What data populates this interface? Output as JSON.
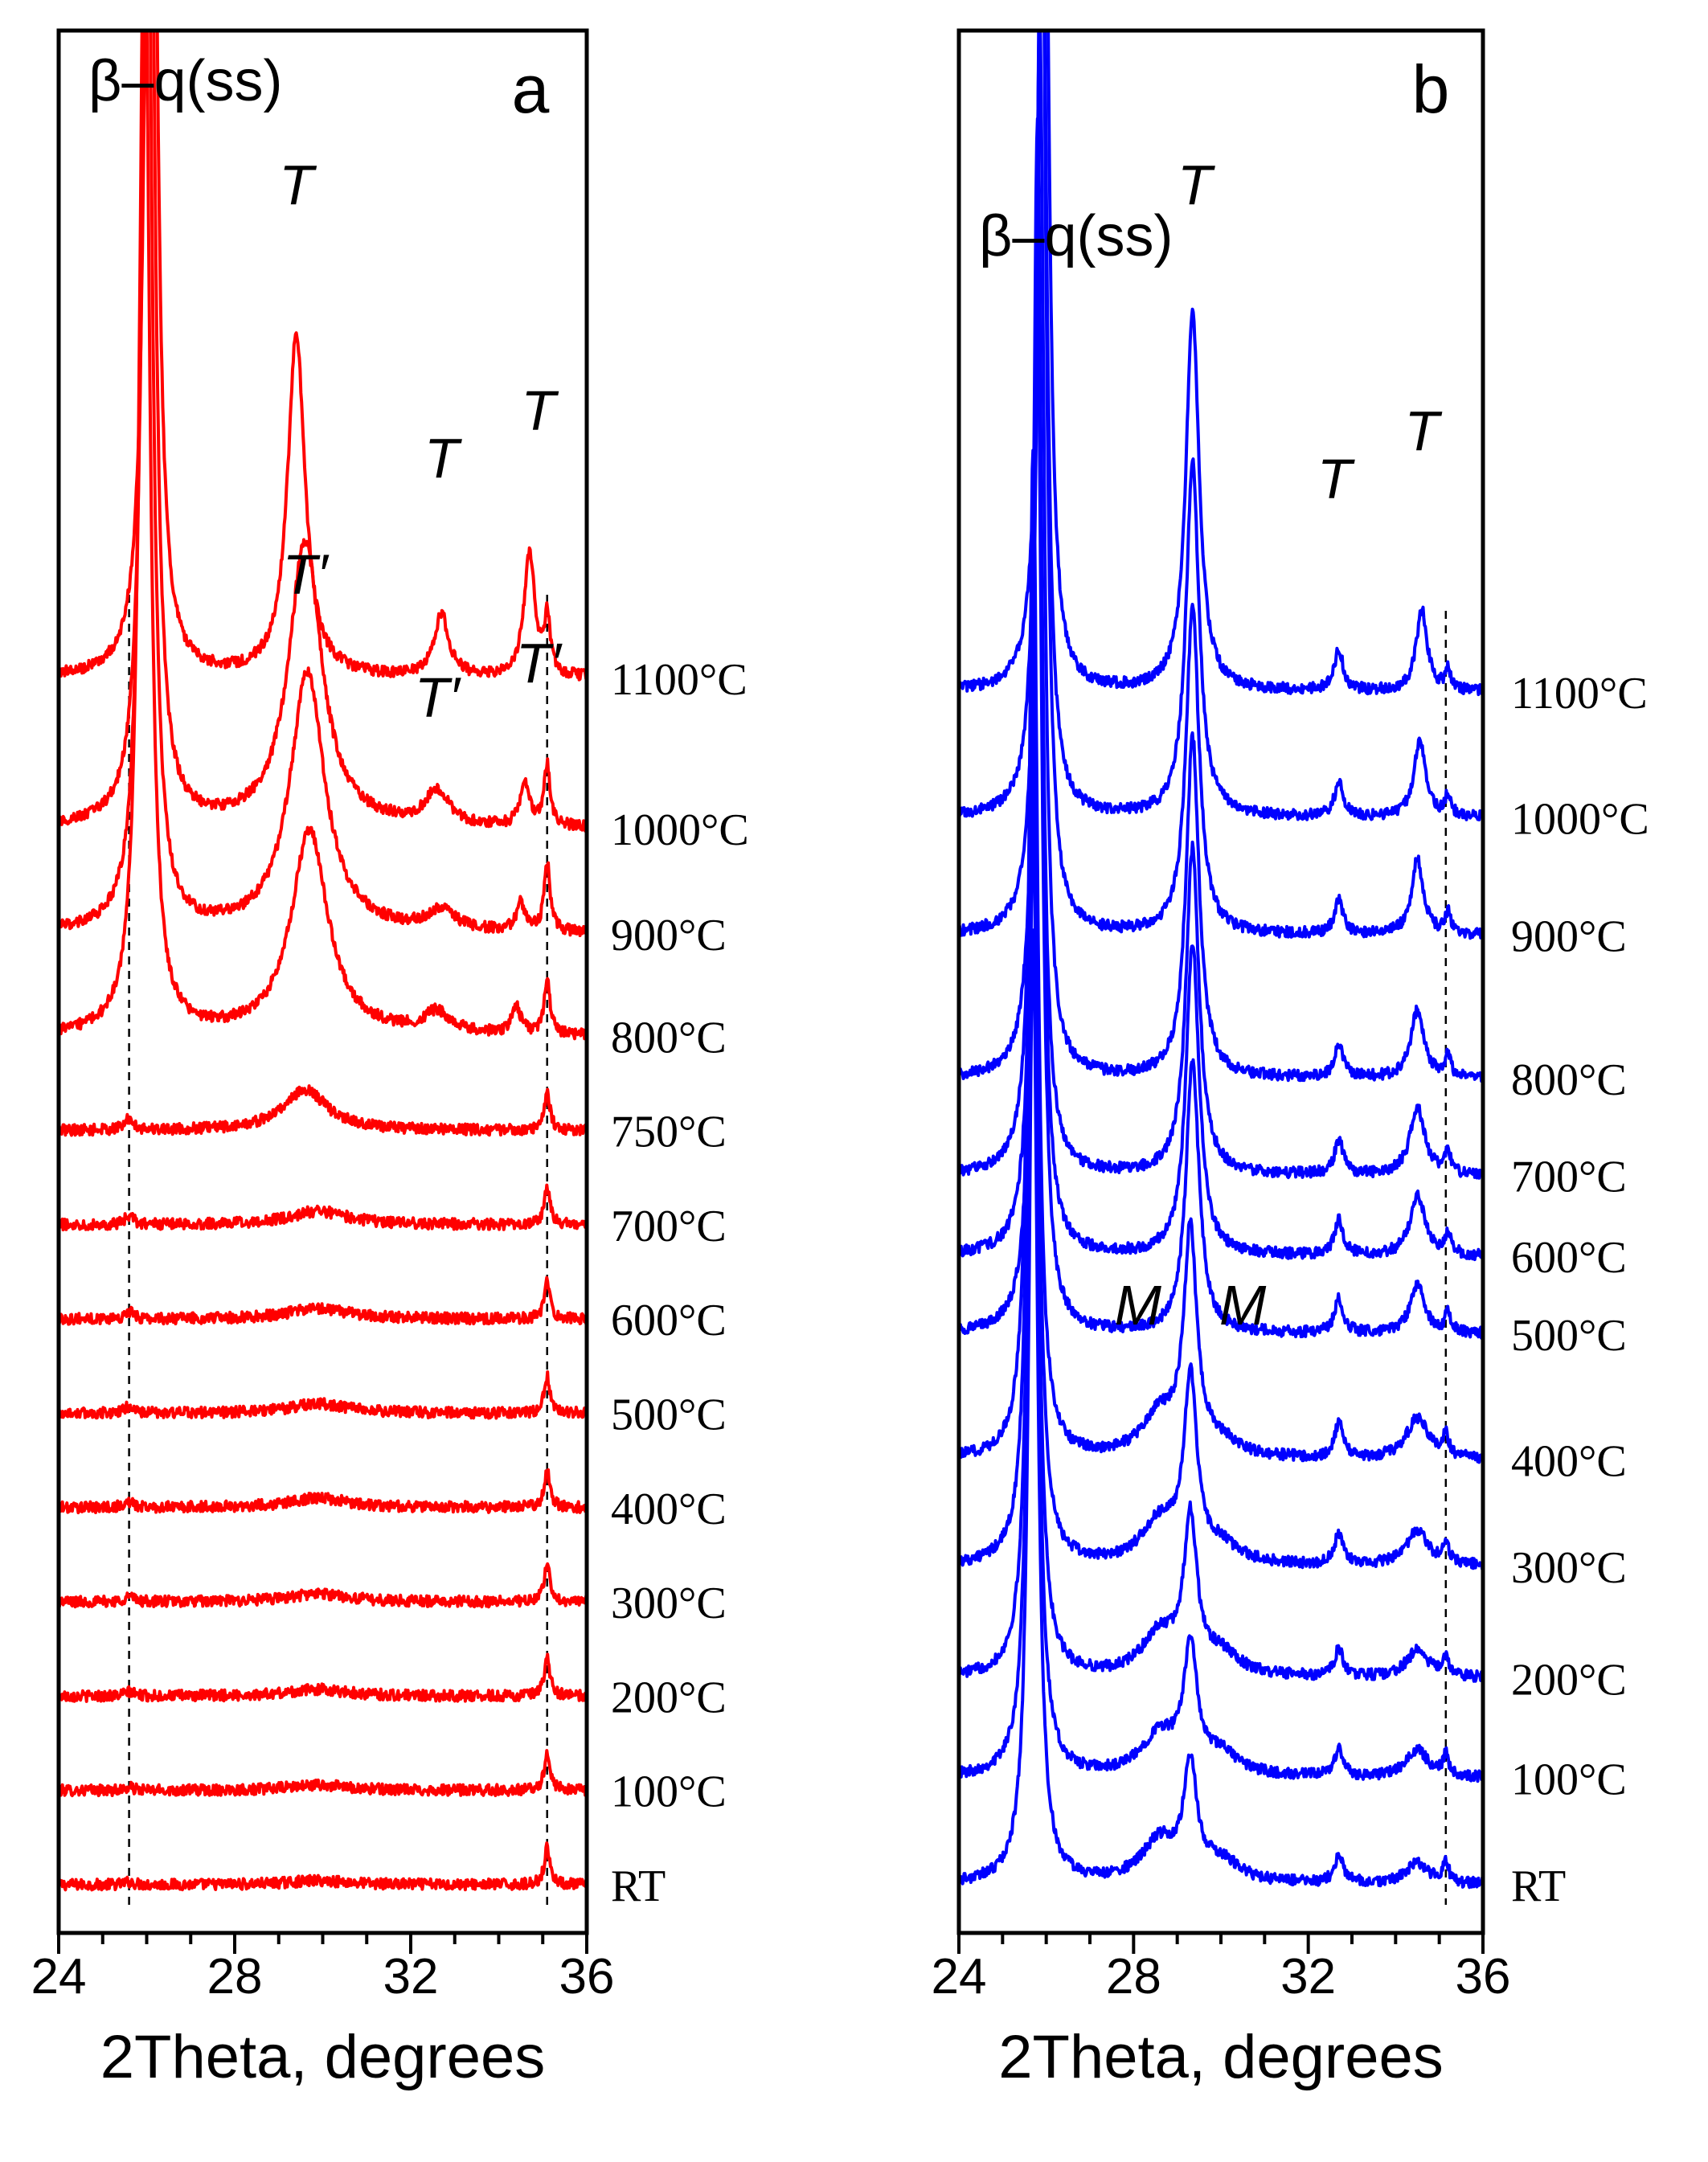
{
  "chart_data": [
    {
      "type": "line",
      "panel": "a",
      "series_color": "#ff0000",
      "xlabel": "2Theta, degrees",
      "xlim": [
        24,
        36
      ],
      "xticks": [
        "24",
        "28",
        "32",
        "36"
      ],
      "phase_label": "β–q(ss)",
      "reference_lines_deg": [
        25.6,
        35.1
      ],
      "series": [
        {
          "name": "RT",
          "baseline": 0.0,
          "peaks": [
            [
              25.6,
              0.02,
              0.12
            ],
            [
              29.9,
              0.03,
              0.8
            ],
            [
              35.1,
              0.27,
              0.08
            ]
          ]
        },
        {
          "name": "100°C",
          "baseline": 0.69,
          "peaks": [
            [
              25.6,
              0.02,
              0.12
            ],
            [
              29.9,
              0.04,
              0.8
            ],
            [
              35.1,
              0.27,
              0.08
            ]
          ]
        },
        {
          "name": "200°C",
          "baseline": 1.38,
          "peaks": [
            [
              25.6,
              0.03,
              0.12
            ],
            [
              29.9,
              0.05,
              0.8
            ],
            [
              35.1,
              0.27,
              0.08
            ]
          ]
        },
        {
          "name": "300°C",
          "baseline": 2.07,
          "peaks": [
            [
              25.6,
              0.04,
              0.12
            ],
            [
              29.9,
              0.06,
              0.8
            ],
            [
              35.1,
              0.27,
              0.08
            ]
          ]
        },
        {
          "name": "400°C",
          "baseline": 2.76,
          "peaks": [
            [
              25.6,
              0.04,
              0.12
            ],
            [
              29.9,
              0.07,
              0.8
            ],
            [
              35.1,
              0.27,
              0.08
            ]
          ]
        },
        {
          "name": "500°C",
          "baseline": 3.45,
          "peaks": [
            [
              25.6,
              0.05,
              0.12
            ],
            [
              29.9,
              0.07,
              0.8
            ],
            [
              35.1,
              0.27,
              0.08
            ]
          ]
        },
        {
          "name": "600°C",
          "baseline": 4.14,
          "peaks": [
            [
              25.6,
              0.05,
              0.12
            ],
            [
              29.9,
              0.08,
              0.8
            ],
            [
              35.1,
              0.27,
              0.08
            ]
          ]
        },
        {
          "name": "700°C",
          "baseline": 4.83,
          "peaks": [
            [
              25.6,
              0.06,
              0.12
            ],
            [
              29.9,
              0.1,
              0.8
            ],
            [
              35.1,
              0.27,
              0.08
            ]
          ]
        },
        {
          "name": "750°C",
          "baseline": 5.52,
          "peaks": [
            [
              25.6,
              0.08,
              0.12
            ],
            [
              29.6,
              0.3,
              0.6
            ],
            [
              35.1,
              0.27,
              0.08
            ]
          ]
        },
        {
          "name": "800°C",
          "baseline": 6.21,
          "peaks": [
            [
              25.95,
              8.5,
              0.14
            ],
            [
              29.7,
              1.5,
              0.5
            ],
            [
              32.6,
              0.15,
              0.35
            ],
            [
              34.4,
              0.2,
              0.12
            ],
            [
              35.1,
              0.4,
              0.08
            ]
          ]
        },
        {
          "name": "900°C",
          "baseline": 6.96,
          "peaks": [
            [
              26.0,
              9.0,
              0.14
            ],
            [
              29.65,
              1.9,
              0.48
            ],
            [
              32.7,
              0.15,
              0.35
            ],
            [
              34.5,
              0.2,
              0.12
            ],
            [
              35.1,
              0.5,
              0.08
            ]
          ]
        },
        {
          "name": "1000°C",
          "baseline": 7.73,
          "peaks": [
            [
              26.05,
              9.5,
              0.14
            ],
            [
              29.6,
              2.1,
              0.45
            ],
            [
              32.6,
              0.25,
              0.3
            ],
            [
              34.6,
              0.3,
              0.13
            ],
            [
              35.1,
              0.45,
              0.08
            ]
          ]
        },
        {
          "name": "1100°C",
          "baseline": 8.83,
          "peaks": [
            [
              26.1,
              10.3,
              0.13
            ],
            [
              29.4,
              2.5,
              0.24
            ],
            [
              32.7,
              0.45,
              0.2
            ],
            [
              34.7,
              0.9,
              0.15
            ],
            [
              35.1,
              0.4,
              0.08
            ]
          ]
        }
      ],
      "annotations": [
        {
          "text": "T",
          "x": 29.4,
          "y": 12.3,
          "italic": true
        },
        {
          "text": "T",
          "x": 32.7,
          "y": 10.3,
          "italic": true
        },
        {
          "text": "T",
          "x": 34.9,
          "y": 10.65,
          "italic": true
        },
        {
          "text": "T′",
          "x": 29.6,
          "y": 9.45,
          "italic": true
        },
        {
          "text": "T′",
          "x": 32.6,
          "y": 8.55,
          "italic": true
        },
        {
          "text": "T′",
          "x": 34.9,
          "y": 8.8,
          "italic": true
        }
      ]
    },
    {
      "type": "line",
      "panel": "b",
      "series_color": "#0000ff",
      "xlabel": "2Theta, degrees",
      "xlim": [
        24,
        36
      ],
      "xticks": [
        "24",
        "28",
        "32",
        "36"
      ],
      "phase_label": "β–q(ss)",
      "reference_lines_deg": [
        35.15
      ],
      "series": [
        {
          "name": "RT",
          "baseline": 0.0,
          "peaks": [
            [
              25.7,
              7.0,
              0.12
            ],
            [
              28.6,
              0.3,
              0.5
            ],
            [
              29.3,
              0.8,
              0.18
            ],
            [
              30.0,
              0.15,
              0.5
            ],
            [
              32.7,
              0.2,
              0.12
            ],
            [
              34.5,
              0.15,
              0.3
            ],
            [
              35.15,
              0.15,
              0.08
            ]
          ]
        },
        {
          "name": "100°C",
          "baseline": 0.78,
          "peaks": [
            [
              25.7,
              7.1,
              0.12
            ],
            [
              28.6,
              0.3,
              0.5
            ],
            [
              29.3,
              0.9,
              0.18
            ],
            [
              30.0,
              0.15,
              0.5
            ],
            [
              32.7,
              0.2,
              0.12
            ],
            [
              34.5,
              0.2,
              0.3
            ],
            [
              35.15,
              0.15,
              0.08
            ]
          ]
        },
        {
          "name": "200°C",
          "baseline": 1.51,
          "peaks": [
            [
              25.7,
              7.2,
              0.12
            ],
            [
              28.6,
              0.3,
              0.5
            ],
            [
              29.3,
              1.1,
              0.18
            ],
            [
              30.0,
              0.15,
              0.5
            ],
            [
              32.7,
              0.2,
              0.12
            ],
            [
              34.5,
              0.2,
              0.3
            ],
            [
              35.15,
              0.15,
              0.08
            ]
          ]
        },
        {
          "name": "300°C",
          "baseline": 2.33,
          "peaks": [
            [
              25.7,
              7.3,
              0.12
            ],
            [
              28.6,
              0.3,
              0.5
            ],
            [
              29.3,
              1.3,
              0.18
            ],
            [
              30.0,
              0.12,
              0.5
            ],
            [
              32.7,
              0.22,
              0.12
            ],
            [
              34.5,
              0.25,
              0.3
            ],
            [
              35.15,
              0.15,
              0.08
            ]
          ]
        },
        {
          "name": "400°C",
          "baseline": 3.11,
          "peaks": [
            [
              25.7,
              7.4,
              0.12
            ],
            [
              28.6,
              0.3,
              0.5
            ],
            [
              29.3,
              1.6,
              0.18
            ],
            [
              30.0,
              0.1,
              0.5
            ],
            [
              32.7,
              0.25,
              0.12
            ],
            [
              34.5,
              0.3,
              0.3
            ],
            [
              35.15,
              0.15,
              0.08
            ]
          ]
        },
        {
          "name": "500°C",
          "baseline": 4.03,
          "peaks": [
            [
              25.8,
              7.5,
              0.12
            ],
            [
              29.35,
              2.0,
              0.18
            ],
            [
              32.7,
              0.25,
              0.12
            ],
            [
              34.5,
              0.35,
              0.2
            ],
            [
              35.2,
              0.15,
              0.08
            ]
          ]
        },
        {
          "name": "600°C",
          "baseline": 4.6,
          "peaks": [
            [
              25.8,
              7.6,
              0.12
            ],
            [
              29.35,
              2.3,
              0.18
            ],
            [
              32.7,
              0.25,
              0.12
            ],
            [
              34.5,
              0.45,
              0.2
            ],
            [
              35.2,
              0.15,
              0.08
            ]
          ]
        },
        {
          "name": "700°C",
          "baseline": 5.19,
          "peaks": [
            [
              25.8,
              7.7,
              0.12
            ],
            [
              29.35,
              2.4,
              0.18
            ],
            [
              32.7,
              0.25,
              0.12
            ],
            [
              34.5,
              0.5,
              0.2
            ],
            [
              35.2,
              0.15,
              0.08
            ]
          ]
        },
        {
          "name": "800°C",
          "baseline": 5.9,
          "peaks": [
            [
              25.85,
              7.8,
              0.12
            ],
            [
              29.35,
              2.5,
              0.18
            ],
            [
              32.7,
              0.25,
              0.12
            ],
            [
              34.5,
              0.5,
              0.18
            ],
            [
              35.2,
              0.15,
              0.08
            ]
          ]
        },
        {
          "name": "900°C",
          "baseline": 6.95,
          "peaks": [
            [
              25.9,
              8.0,
              0.12
            ],
            [
              29.35,
              2.4,
              0.18
            ],
            [
              32.7,
              0.25,
              0.12
            ],
            [
              34.5,
              0.55,
              0.16
            ],
            [
              35.2,
              0.15,
              0.08
            ]
          ]
        },
        {
          "name": "1000°C",
          "baseline": 7.81,
          "peaks": [
            [
              25.9,
              7.9,
              0.12
            ],
            [
              29.35,
              2.6,
              0.18
            ],
            [
              32.7,
              0.25,
              0.12
            ],
            [
              34.55,
              0.55,
              0.16
            ],
            [
              35.2,
              0.15,
              0.08
            ]
          ]
        },
        {
          "name": "1100°C",
          "baseline": 8.73,
          "peaks": [
            [
              25.95,
              7.9,
              0.12
            ],
            [
              29.35,
              2.8,
              0.18
            ],
            [
              32.7,
              0.3,
              0.12
            ],
            [
              34.6,
              0.6,
              0.15
            ],
            [
              35.2,
              0.15,
              0.08
            ]
          ]
        }
      ],
      "annotations": [
        {
          "text": "T",
          "x": 29.4,
          "y": 12.3,
          "italic": true
        },
        {
          "text": "T",
          "x": 32.6,
          "y": 10.15,
          "italic": true
        },
        {
          "text": "T",
          "x": 34.6,
          "y": 10.5,
          "italic": true
        },
        {
          "text": "M",
          "x": 28.1,
          "y": 4.1,
          "italic": true
        },
        {
          "text": "M",
          "x": 30.5,
          "y": 4.1,
          "italic": true
        }
      ]
    }
  ]
}
